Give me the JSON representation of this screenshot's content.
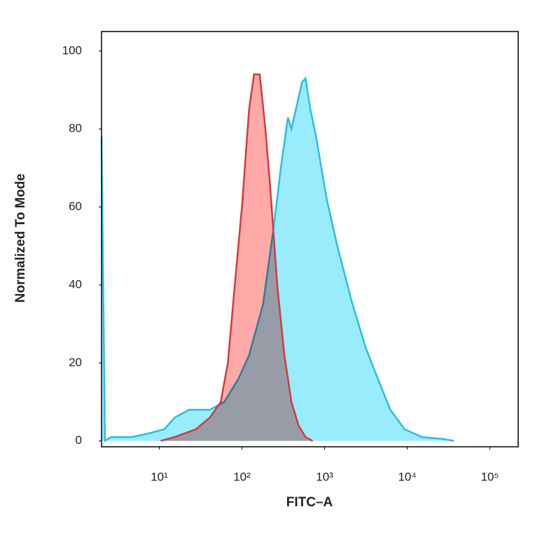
{
  "chart_data": {
    "type": "area",
    "x_label": "FITC–A",
    "y_label": "Normalized To Mode",
    "xscale": "log",
    "xlim": [
      2,
      220000
    ],
    "ylim": [
      -1.5,
      105
    ],
    "xticks": [
      {
        "value": 10,
        "label": "10¹"
      },
      {
        "value": 100,
        "label": "10²"
      },
      {
        "value": 1000,
        "label": "10³"
      },
      {
        "value": 10000,
        "label": "10⁴"
      },
      {
        "value": 100000,
        "label": "10⁵"
      }
    ],
    "yticks": [
      0,
      20,
      40,
      60,
      80,
      100
    ],
    "grid": false,
    "series": [
      {
        "color": "#2cbde3",
        "fill": "#86e9fb",
        "x": [
          2,
          2.2,
          2.6,
          4.7,
          7.7,
          11.5,
          15.4,
          22.9,
          41,
          61,
          91,
          122,
          180,
          243,
          295,
          360,
          397,
          533,
          587,
          674,
          789,
          1062,
          1426,
          2113,
          3133,
          4207,
          6239,
          9250,
          15100,
          27300,
          36600
        ],
        "values": [
          78,
          0,
          1,
          1,
          2,
          3,
          6,
          8,
          8,
          10,
          16,
          22,
          35,
          55,
          70,
          83,
          80,
          92,
          93,
          85,
          78,
          62,
          50,
          36,
          24,
          17,
          8,
          3,
          1,
          0.5,
          0
        ]
      },
      {
        "color": "#d23a3a",
        "fill": "#ff9a9a",
        "x": [
          10.4,
          15.4,
          27.8,
          41,
          55.4,
          67.5,
          82,
          100,
          122,
          140,
          164,
          192,
          220,
          267,
          326,
          397,
          483,
          587,
          716
        ],
        "values": [
          0,
          1,
          3,
          6,
          10,
          20,
          40,
          60,
          85,
          94,
          94,
          80,
          65,
          40,
          22,
          10,
          4,
          1,
          0
        ]
      }
    ]
  }
}
